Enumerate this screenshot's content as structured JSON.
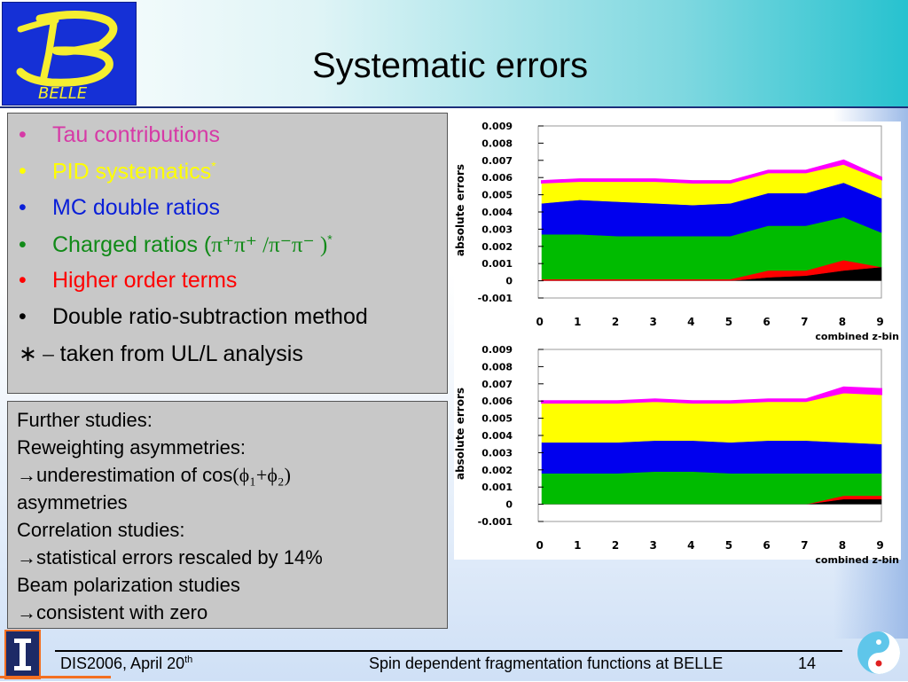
{
  "header": {
    "title": "Systematic errors",
    "logo_text": "BELLE"
  },
  "bullets": [
    {
      "text": "Tau contributions",
      "color": "#d63aa6"
    },
    {
      "text": "PID systematics",
      "suffix": "*",
      "color": "#ffff00"
    },
    {
      "text": "MC double ratios",
      "color": "#0a1fd8"
    },
    {
      "text": "Charged ratios (",
      "math": "π⁺π⁺ /π⁻π⁻ )",
      "suffix": "*",
      "color": "#118a18"
    },
    {
      "text": "Higher order terms",
      "color": "#ff0000"
    },
    {
      "text": "Double ratio-subtraction method",
      "color": "#000000"
    }
  ],
  "note": {
    "symbol": "∗ –",
    "text": " taken from UL/L analysis"
  },
  "further": {
    "lines": [
      "Further studies:",
      "Reweighting  asymmetries:",
      "→underestimation of cos",
      "asymmetries",
      "Correlation studies:",
      "→statistical errors rescaled by 14%",
      "Beam polarization studies",
      "→consistent with zero"
    ],
    "cos_args": "(ϕ₁+ϕ₂)"
  },
  "chart_data": [
    {
      "type": "area",
      "stacked": true,
      "ylabel": "absolute errors",
      "xlabel": "combined z-bin",
      "x": [
        0,
        1,
        2,
        3,
        4,
        5,
        6,
        7,
        8,
        9
      ],
      "ylim": [
        -0.001,
        0.009
      ],
      "yticks": [
        "0.009",
        "0.008",
        "0.007",
        "0.006",
        "0.005",
        "0.004",
        "0.003",
        "0.002",
        "0.001",
        "0",
        "-0.001"
      ],
      "series": [
        {
          "color": "#000000",
          "values": [
            0.0,
            0.0,
            0.0,
            0.0,
            0.0,
            0.0,
            0.0002,
            0.0003,
            0.0006,
            0.0008
          ]
        },
        {
          "color": "#ff0000",
          "values": [
            0.0001,
            0.0001,
            0.0001,
            0.0001,
            0.0001,
            0.0001,
            0.0004,
            0.0003,
            0.0006,
            0.0
          ]
        },
        {
          "color": "#00bb00",
          "values": [
            0.0026,
            0.0026,
            0.0025,
            0.0025,
            0.0025,
            0.0025,
            0.0026,
            0.0026,
            0.0025,
            0.002
          ]
        },
        {
          "color": "#0000ee",
          "values": [
            0.0018,
            0.002,
            0.002,
            0.0019,
            0.0018,
            0.0019,
            0.0019,
            0.0019,
            0.002,
            0.002
          ]
        },
        {
          "color": "#ffff00",
          "values": [
            0.0012,
            0.0011,
            0.0012,
            0.0013,
            0.0013,
            0.0012,
            0.0012,
            0.0012,
            0.0011,
            0.0011
          ]
        },
        {
          "color": "#ff00ff",
          "values": [
            0.0001,
            0.0001,
            0.0001,
            0.0001,
            0.0001,
            0.0001,
            0.0001,
            0.0001,
            0.0002,
            0.0001
          ]
        }
      ]
    },
    {
      "type": "area",
      "stacked": true,
      "ylabel": "absolute errors",
      "xlabel": "combined z-bin",
      "x": [
        0,
        1,
        2,
        3,
        4,
        5,
        6,
        7,
        8,
        9
      ],
      "ylim": [
        -0.001,
        0.009
      ],
      "yticks": [
        "0.009",
        "0.008",
        "0.007",
        "0.006",
        "0.005",
        "0.004",
        "0.003",
        "0.002",
        "0.001",
        "0",
        "-0.001"
      ],
      "series": [
        {
          "color": "#000000",
          "values": [
            0.0,
            0.0,
            0.0,
            0.0,
            0.0,
            0.0,
            0.0,
            0.0,
            0.0003,
            0.0003
          ]
        },
        {
          "color": "#ff0000",
          "values": [
            0.0,
            0.0,
            0.0,
            0.0,
            0.0,
            0.0,
            0.0,
            0.0,
            0.0002,
            0.0002
          ]
        },
        {
          "color": "#00bb00",
          "values": [
            0.0018,
            0.0018,
            0.0018,
            0.0019,
            0.0019,
            0.0018,
            0.0018,
            0.0018,
            0.0013,
            0.0013
          ]
        },
        {
          "color": "#0000ee",
          "values": [
            0.0018,
            0.0018,
            0.0018,
            0.0018,
            0.0018,
            0.0018,
            0.0019,
            0.0019,
            0.0018,
            0.0017
          ]
        },
        {
          "color": "#ffff00",
          "values": [
            0.0023,
            0.0023,
            0.0023,
            0.0023,
            0.0022,
            0.0023,
            0.0023,
            0.0023,
            0.0029,
            0.0029
          ]
        },
        {
          "color": "#ff00ff",
          "values": [
            0.0001,
            0.0001,
            0.0001,
            0.0001,
            0.0001,
            0.0001,
            0.0001,
            0.0001,
            0.0003,
            0.0003
          ]
        }
      ]
    }
  ],
  "footer": {
    "left": "DIS2006, April 20",
    "left_sup": "th",
    "center": "Spin dependent fragmentation functions at BELLE",
    "page": "14"
  }
}
